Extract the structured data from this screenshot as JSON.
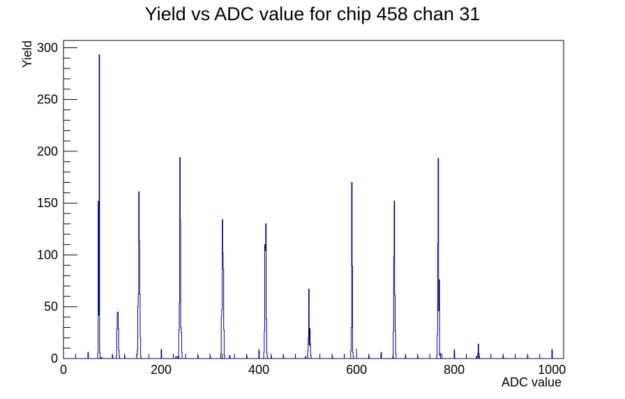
{
  "chart_data": {
    "type": "histogram",
    "title": "Yield vs ADC value for chip 458 chan 31",
    "xlabel": "ADC value",
    "ylabel": "Yield",
    "xlim": [
      0,
      1024
    ],
    "ylim": [
      0,
      307
    ],
    "x_ticks": [
      0,
      200,
      400,
      600,
      800,
      1000
    ],
    "y_ticks": [
      0,
      50,
      100,
      150,
      200,
      250,
      300
    ],
    "grid": false,
    "line_color": "#000080",
    "bin_width": 1,
    "bins": [
      [
        50,
        6
      ],
      [
        70,
        5
      ],
      [
        71,
        152
      ],
      [
        72,
        42
      ],
      [
        73,
        293
      ],
      [
        74,
        6
      ],
      [
        77,
        1
      ],
      [
        78,
        1
      ],
      [
        100,
        3
      ],
      [
        108,
        3
      ],
      [
        109,
        28
      ],
      [
        110,
        44
      ],
      [
        111,
        45
      ],
      [
        112,
        29
      ],
      [
        113,
        8
      ],
      [
        114,
        2
      ],
      [
        125,
        2
      ],
      [
        150,
        3
      ],
      [
        151,
        8
      ],
      [
        152,
        50
      ],
      [
        153,
        62
      ],
      [
        154,
        161
      ],
      [
        155,
        113
      ],
      [
        156,
        62
      ],
      [
        157,
        20
      ],
      [
        158,
        2
      ],
      [
        200,
        8
      ],
      [
        230,
        2
      ],
      [
        234,
        2
      ],
      [
        236,
        28
      ],
      [
        237,
        54
      ],
      [
        238,
        194
      ],
      [
        239,
        133
      ],
      [
        240,
        30
      ],
      [
        241,
        25
      ],
      [
        242,
        6
      ],
      [
        275,
        2
      ],
      [
        300,
        2
      ],
      [
        322,
        5
      ],
      [
        323,
        40
      ],
      [
        324,
        47
      ],
      [
        325,
        134
      ],
      [
        326,
        102
      ],
      [
        327,
        86
      ],
      [
        328,
        28
      ],
      [
        329,
        3
      ],
      [
        340,
        3
      ],
      [
        375,
        2
      ],
      [
        400,
        7
      ],
      [
        410,
        6
      ],
      [
        411,
        27
      ],
      [
        412,
        110
      ],
      [
        413,
        104
      ],
      [
        414,
        130
      ],
      [
        415,
        38
      ],
      [
        416,
        5
      ],
      [
        417,
        2
      ],
      [
        425,
        2
      ],
      [
        450,
        2
      ],
      [
        495,
        2
      ],
      [
        500,
        7
      ],
      [
        501,
        20
      ],
      [
        502,
        67
      ],
      [
        503,
        13
      ],
      [
        504,
        29
      ],
      [
        505,
        14
      ],
      [
        506,
        3
      ],
      [
        550,
        2
      ],
      [
        588,
        7
      ],
      [
        589,
        30
      ],
      [
        590,
        170
      ],
      [
        591,
        89
      ],
      [
        592,
        6
      ],
      [
        593,
        2
      ],
      [
        625,
        2
      ],
      [
        650,
        6
      ],
      [
        674,
        2
      ],
      [
        675,
        26
      ],
      [
        676,
        98
      ],
      [
        677,
        152
      ],
      [
        678,
        61
      ],
      [
        679,
        27
      ],
      [
        680,
        5
      ],
      [
        700,
        2
      ],
      [
        725,
        2
      ],
      [
        764,
        3
      ],
      [
        765,
        23
      ],
      [
        766,
        111
      ],
      [
        767,
        193
      ],
      [
        768,
        46
      ],
      [
        769,
        76
      ],
      [
        770,
        3
      ],
      [
        771,
        5
      ],
      [
        800,
        7
      ],
      [
        845,
        2
      ],
      [
        848,
        5
      ],
      [
        849,
        14
      ],
      [
        850,
        5
      ],
      [
        851,
        2
      ],
      [
        900,
        2
      ],
      [
        950,
        2
      ],
      [
        1000,
        8
      ]
    ]
  }
}
